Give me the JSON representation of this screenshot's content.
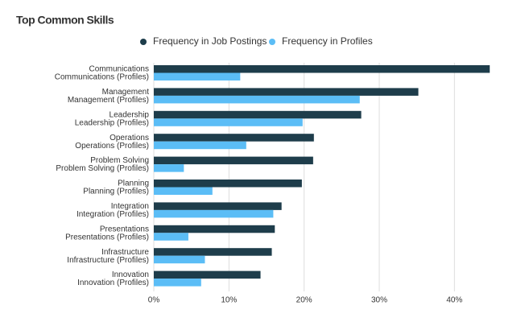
{
  "chart_data": {
    "type": "bar",
    "orientation": "horizontal",
    "title": "Top Common Skills",
    "categories": [
      [
        "Communications",
        "Communications (Profiles)"
      ],
      [
        "Management",
        "Management (Profiles)"
      ],
      [
        "Leadership",
        "Leadership (Profiles)"
      ],
      [
        "Operations",
        "Operations (Profiles)"
      ],
      [
        "Problem Solving",
        "Problem Solving (Profiles)"
      ],
      [
        "Planning",
        "Planning (Profiles)"
      ],
      [
        "Integration",
        "Integration (Profiles)"
      ],
      [
        "Presentations",
        "Presentations (Profiles)"
      ],
      [
        "Infrastructure",
        "Infrastructure (Profiles)"
      ],
      [
        "Innovation",
        "Innovation (Profiles)"
      ]
    ],
    "series": [
      {
        "name": "Frequency in Job Postings",
        "color": "#1e3d4b",
        "values": [
          44.7,
          35.2,
          27.6,
          21.3,
          21.2,
          19.7,
          17.0,
          16.1,
          15.7,
          14.2
        ]
      },
      {
        "name": "Frequency in Profiles",
        "color": "#5bbdf6",
        "values": [
          11.5,
          27.4,
          19.8,
          12.3,
          4.0,
          7.8,
          15.9,
          4.6,
          6.8,
          6.3
        ]
      }
    ],
    "xlim": [
      0,
      45
    ],
    "xticks": [
      {
        "value": 0,
        "label": "0%"
      },
      {
        "value": 10,
        "label": "10%"
      },
      {
        "value": 20,
        "label": "20%"
      },
      {
        "value": 30,
        "label": "30%"
      },
      {
        "value": 40,
        "label": "40%"
      }
    ],
    "grid": true,
    "legend": "top"
  }
}
